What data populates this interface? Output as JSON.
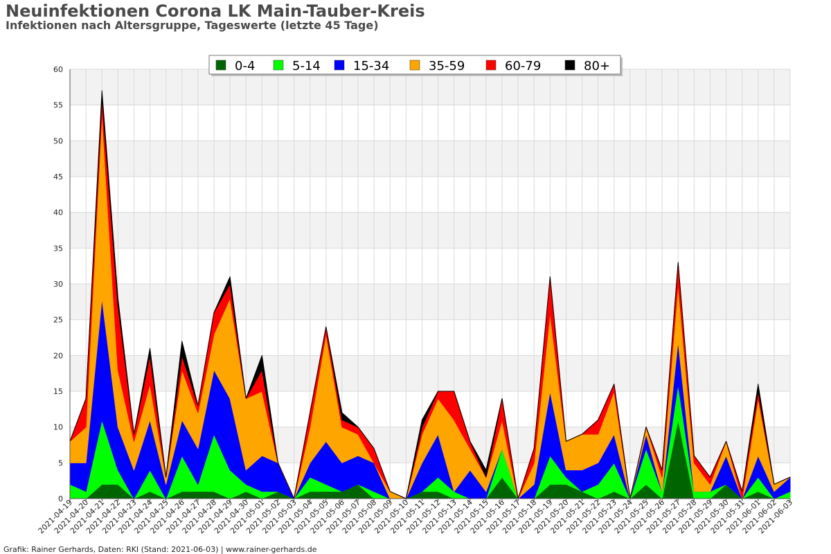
{
  "header": {
    "title": "Neuinfektionen Corona LK Main-Tauber-Kreis",
    "subtitle": "Infektionen nach Altersgruppe, Tageswerte (letzte 45 Tage)"
  },
  "footer": {
    "credit": "Grafik: Rainer Gerhards, Daten: RKI (Stand: 2021-06-03) | www.rainer-gerhards.de"
  },
  "chart_data": {
    "type": "area",
    "stacked": true,
    "title": "Neuinfektionen Corona LK Main-Tauber-Kreis",
    "subtitle": "Infektionen nach Altersgruppe, Tageswerte (letzte 45 Tage)",
    "xlabel": "",
    "ylabel": "",
    "ylim": [
      0,
      60
    ],
    "yticks": [
      0,
      5,
      10,
      15,
      20,
      25,
      30,
      35,
      40,
      45,
      50,
      55,
      60
    ],
    "grid": true,
    "legend_position": "top",
    "x": [
      "2021-04-19",
      "2021-04-20",
      "2021-04-21",
      "2021-04-22",
      "2021-04-23",
      "2021-04-24",
      "2021-04-25",
      "2021-04-26",
      "2021-04-27",
      "2021-04-28",
      "2021-04-29",
      "2021-04-30",
      "2021-05-01",
      "2021-05-02",
      "2021-05-03",
      "2021-05-04",
      "2021-05-05",
      "2021-05-06",
      "2021-05-07",
      "2021-05-08",
      "2021-05-09",
      "2021-05-10",
      "2021-05-11",
      "2021-05-12",
      "2021-05-13",
      "2021-05-14",
      "2021-05-15",
      "2021-05-16",
      "2021-05-17",
      "2021-05-18",
      "2021-05-19",
      "2021-05-20",
      "2021-05-21",
      "2021-05-22",
      "2021-05-23",
      "2021-05-24",
      "2021-05-25",
      "2021-05-26",
      "2021-05-27",
      "2021-05-28",
      "2021-05-29",
      "2021-05-30",
      "2021-05-31",
      "2021-06-01",
      "2021-06-02",
      "2021-06-03"
    ],
    "series": [
      {
        "name": "0-4",
        "color": "#006400",
        "values": [
          0,
          0,
          2,
          2,
          0,
          1,
          0,
          1,
          1,
          1,
          0,
          1,
          0,
          1,
          0,
          1,
          1,
          1,
          2,
          0,
          0,
          0,
          1,
          1,
          0,
          0,
          0,
          3,
          0,
          0,
          2,
          2,
          1,
          0,
          1,
          0,
          2,
          0,
          11,
          0,
          0,
          2,
          0,
          1,
          0,
          0
        ]
      },
      {
        "name": "5-14",
        "color": "#00ff00",
        "values": [
          2,
          1,
          9,
          2,
          0,
          3,
          0,
          5,
          1,
          8,
          4,
          1,
          1,
          0,
          0,
          2,
          1,
          0,
          0,
          1,
          0,
          0,
          0,
          2,
          1,
          0,
          0,
          4,
          0,
          0,
          4,
          1,
          0,
          2,
          4,
          0,
          5,
          1,
          5,
          1,
          1,
          0,
          0,
          2,
          0,
          1
        ]
      },
      {
        "name": "15-34",
        "color": "#0000ff",
        "values": [
          3,
          4,
          17,
          6,
          4,
          7,
          2,
          5,
          5,
          9,
          10,
          2,
          5,
          4,
          0,
          2,
          6,
          4,
          4,
          4,
          0,
          0,
          4,
          6,
          0,
          4,
          1,
          0,
          0,
          2,
          9,
          1,
          3,
          3,
          4,
          0,
          2,
          0,
          6,
          0,
          0,
          4,
          0,
          3,
          1,
          2
        ]
      },
      {
        "name": "35-59",
        "color": "#ffa500",
        "values": [
          3,
          5,
          26,
          8,
          4,
          5,
          1,
          7,
          5,
          5,
          14,
          10,
          9,
          0,
          0,
          5,
          15,
          5,
          3,
          0,
          1,
          0,
          4,
          5,
          10,
          3,
          2,
          4,
          0,
          3,
          11,
          4,
          5,
          4,
          6,
          0,
          1,
          2,
          8,
          4,
          1,
          2,
          0,
          8,
          1,
          0
        ]
      },
      {
        "name": "60-79",
        "color": "#ff0000",
        "values": [
          0,
          4,
          2,
          9,
          1,
          4,
          0,
          2,
          1,
          3,
          2,
          0,
          3,
          0,
          0,
          2,
          1,
          1,
          1,
          2,
          0,
          0,
          1,
          1,
          4,
          1,
          0,
          3,
          0,
          2,
          5,
          0,
          0,
          2,
          1,
          0,
          0,
          1,
          3,
          1,
          1,
          0,
          1,
          1,
          0,
          0
        ]
      },
      {
        "name": "80+",
        "color": "#000000",
        "values": [
          0,
          0,
          1,
          1,
          0,
          1,
          0,
          2,
          0,
          0,
          1,
          0,
          2,
          0,
          0,
          0,
          0,
          1,
          0,
          0,
          0,
          0,
          1,
          0,
          0,
          0,
          1,
          0,
          0,
          0,
          0,
          0,
          0,
          0,
          0,
          0,
          0,
          0,
          0,
          0,
          0,
          0,
          0,
          1,
          0,
          0
        ]
      }
    ]
  }
}
